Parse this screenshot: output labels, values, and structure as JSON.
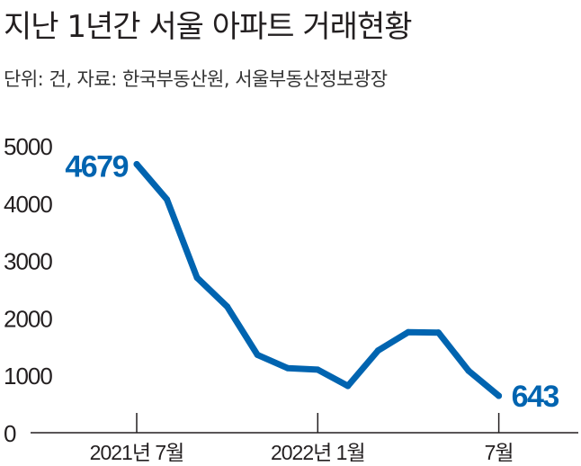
{
  "header": {
    "title": "지난 1년간 서울 아파트 거래현황",
    "subtitle": "단위: 건, 자료: 한국부동산원, 서울부동산정보광장"
  },
  "colors": {
    "line": "#0064b0",
    "axis": "#231f20",
    "callout": "#0064b0",
    "text": "#231f20"
  },
  "chart_data": {
    "type": "line",
    "title": "지난 1년간 서울 아파트 거래현황",
    "subtitle": "단위: 건, 자료: 한국부동산원, 서울부동산정보광장",
    "x": [
      "2021-07",
      "2021-08",
      "2021-09",
      "2021-10",
      "2021-11",
      "2021-12",
      "2022-01",
      "2022-02",
      "2022-03",
      "2022-04",
      "2022-05",
      "2022-06",
      "2022-07"
    ],
    "series": [
      {
        "values": [
          4679,
          4064,
          2700,
          2197,
          1357,
          1126,
          1098,
          815,
          1433,
          1752,
          1745,
          1079,
          643
        ]
      }
    ],
    "ylim": [
      0,
      5000
    ],
    "yticks": [
      "0",
      "1000",
      "2000",
      "3000",
      "4000",
      "5000"
    ],
    "xtick_labels": [
      {
        "index": 0,
        "label": "2021년 7월"
      },
      {
        "index": 6,
        "label": "2022년 1월"
      },
      {
        "index": 12,
        "label": "7월"
      }
    ],
    "callouts": [
      {
        "index": 0,
        "label": "4679"
      },
      {
        "index": 12,
        "label": "643"
      }
    ],
    "grid": false
  }
}
